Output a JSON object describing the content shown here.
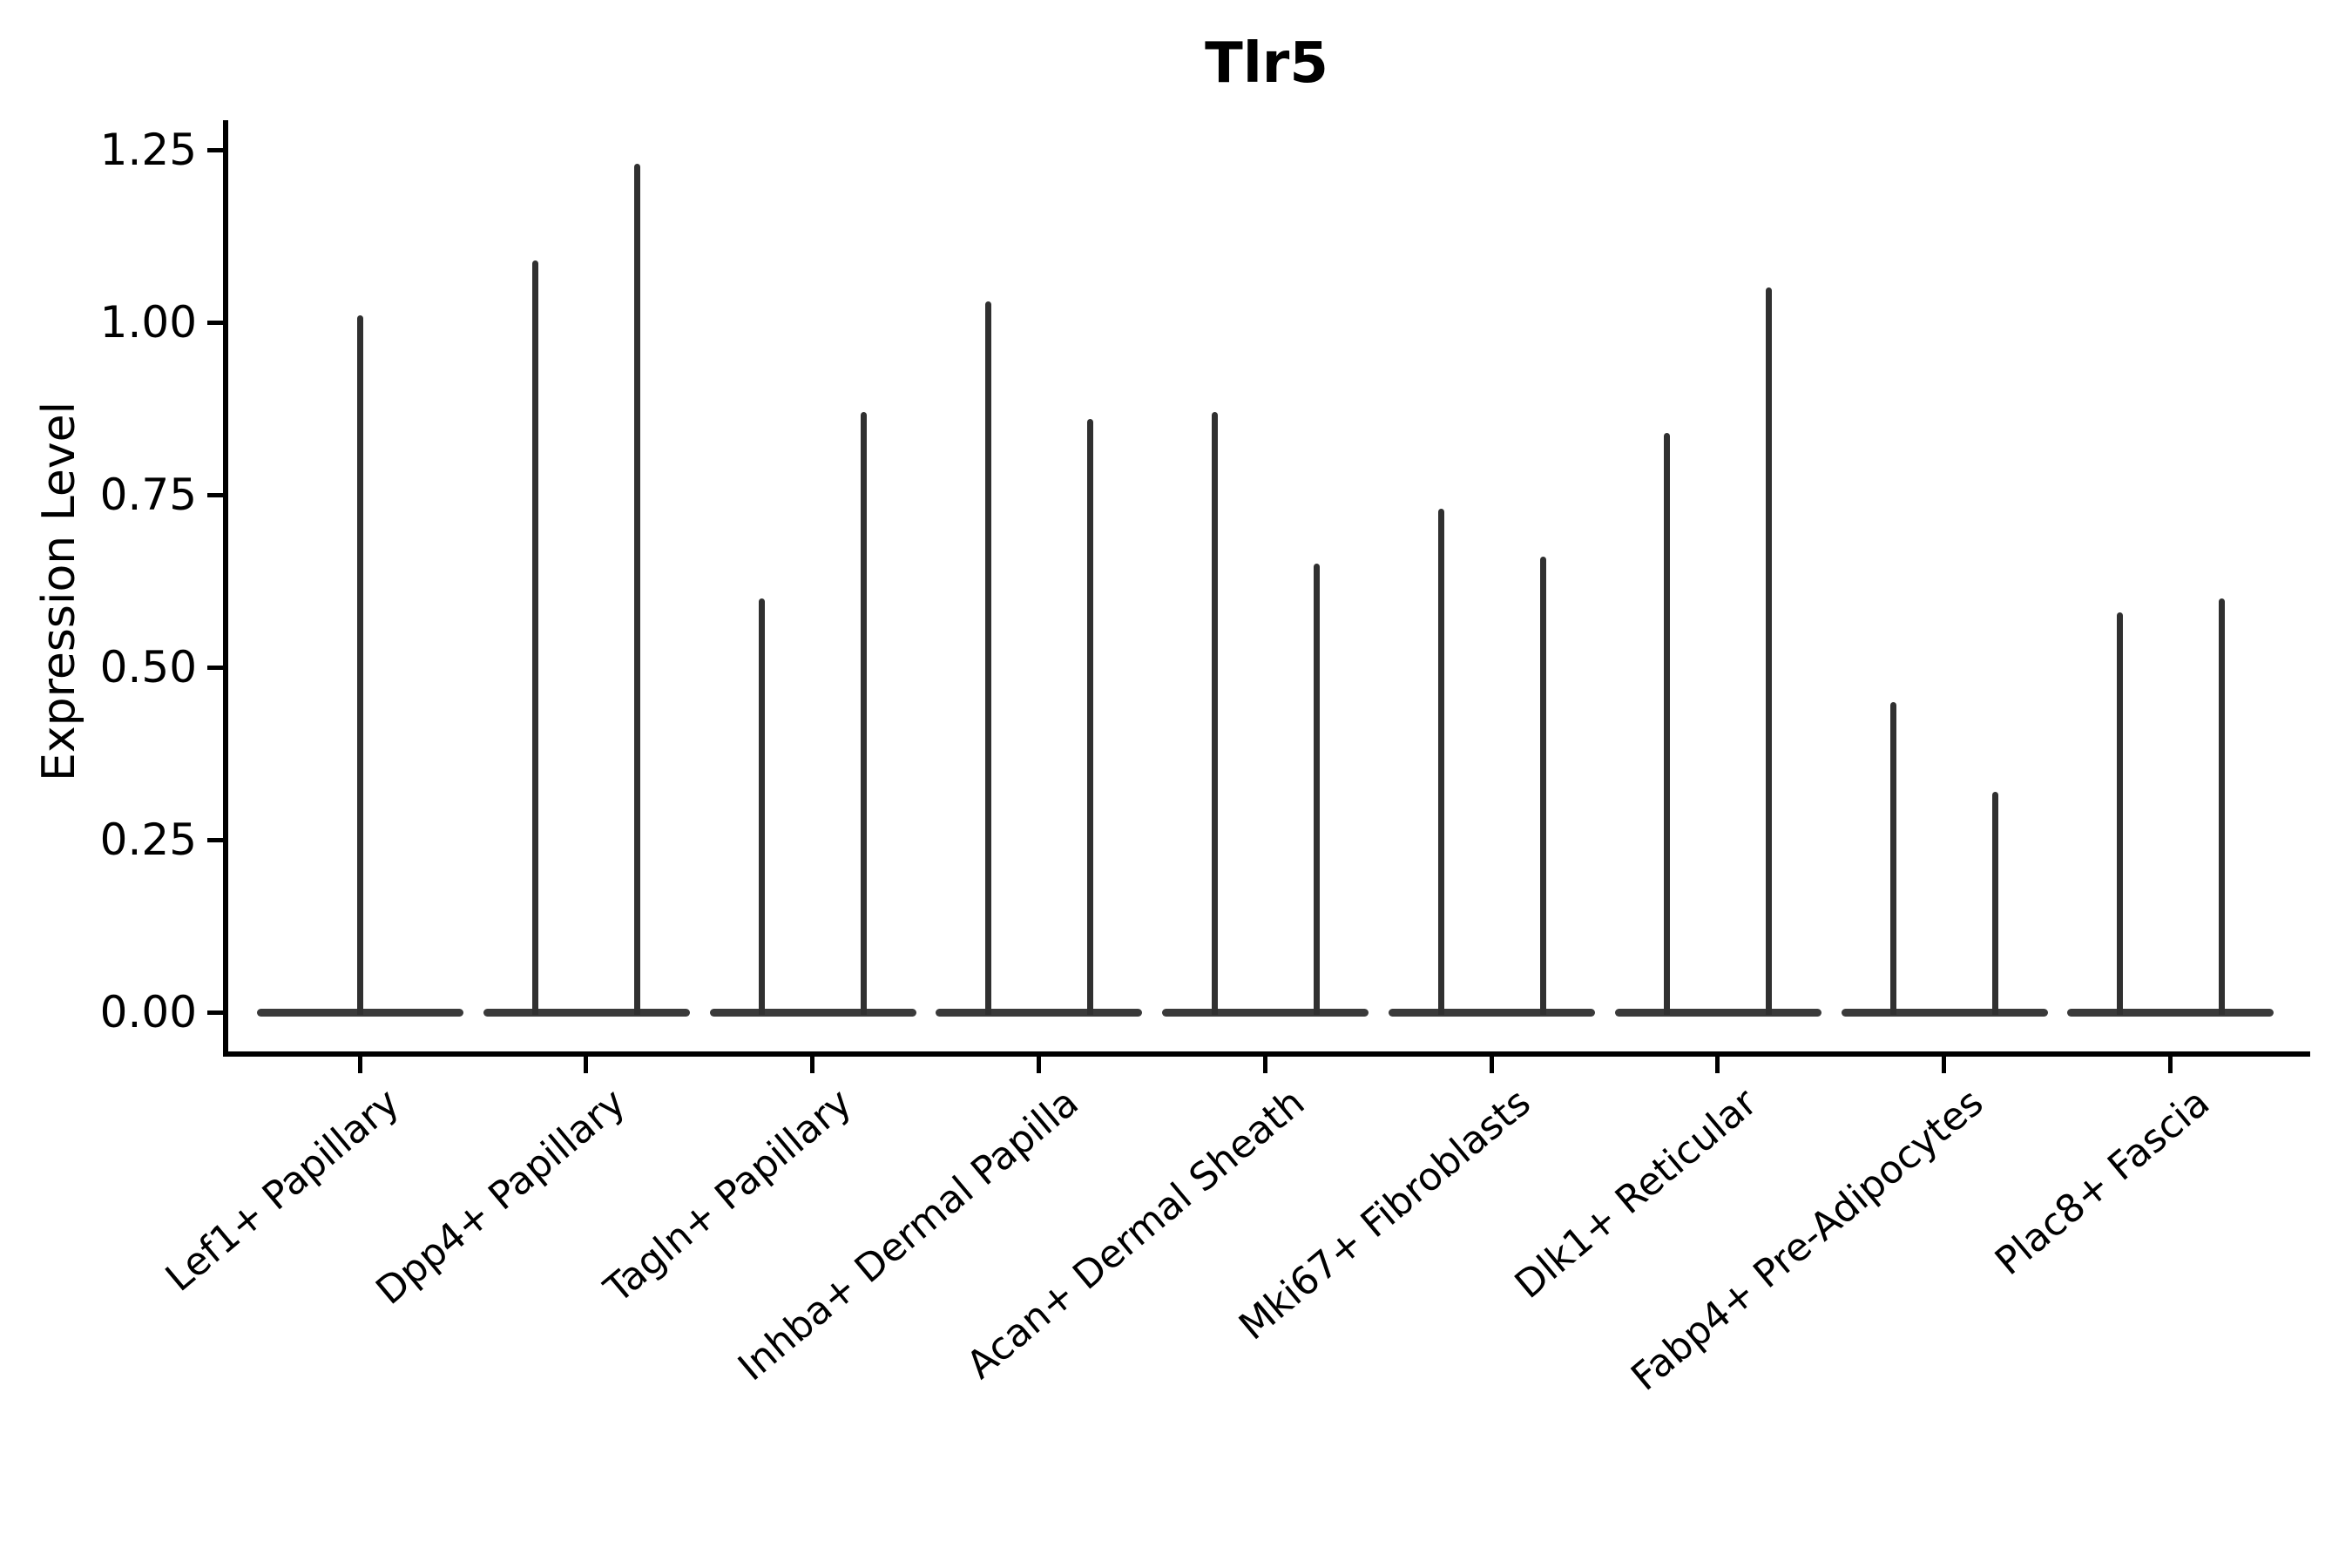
{
  "title": "Tlr5",
  "y_axis": {
    "label": "Expression Level",
    "tick_labels": [
      "0.00",
      "0.25",
      "0.50",
      "0.75",
      "1.00",
      "1.25"
    ]
  },
  "x_axis": {
    "tick_label_rotation_deg": 40
  },
  "colors": {
    "background": "#ffffff",
    "axis": "#000000",
    "violin_spike": "#303030",
    "violin_body": "#3a3a3a",
    "text": "#000000"
  },
  "chart_data": {
    "type": "violin",
    "title": "Tlr5",
    "xlabel": "",
    "ylabel": "Expression Level",
    "ylim": [
      -0.06,
      1.3
    ],
    "yticks": [
      0.0,
      0.25,
      0.5,
      0.75,
      1.0,
      1.25
    ],
    "grid": false,
    "legend": "none",
    "description": "Single-gene expression violin plot. Each category shows violin(s) whose density mass is concentrated at 0 (flat wide body at y=0) with a thin vertical extrema line rising to the maximum expression value. Category 1 has one centered violin; categories 2-9 each contain two side-by-side violins.",
    "categories": [
      "Lef1+ Papillary",
      "Dpp4+ Papillary",
      "Tagln+ Papillary",
      "Inhba+ Dermal Papilla",
      "Acan+ Dermal Sheath",
      "Mki67+ Fibroblasts",
      "Dlk1+ Reticular",
      "Fabp4+ Pre-Adipocytes",
      "Plac8+ Fascia"
    ],
    "groups": [
      {
        "label": "Lef1+ Papillary",
        "violins": [
          {
            "min": 0,
            "max": 1.01
          }
        ]
      },
      {
        "label": "Dpp4+ Papillary",
        "violins": [
          {
            "min": 0,
            "max": 1.09
          },
          {
            "min": 0,
            "max": 1.23
          }
        ]
      },
      {
        "label": "Tagln+ Papillary",
        "violins": [
          {
            "min": 0,
            "max": 0.6
          },
          {
            "min": 0,
            "max": 0.87
          }
        ]
      },
      {
        "label": "Inhba+ Dermal Papilla",
        "violins": [
          {
            "min": 0,
            "max": 1.03
          },
          {
            "min": 0,
            "max": 0.86
          }
        ]
      },
      {
        "label": "Acan+ Dermal Sheath",
        "violins": [
          {
            "min": 0,
            "max": 0.87
          },
          {
            "min": 0,
            "max": 0.65
          }
        ]
      },
      {
        "label": "Mki67+ Fibroblasts",
        "violins": [
          {
            "min": 0,
            "max": 0.73
          },
          {
            "min": 0,
            "max": 0.66
          }
        ]
      },
      {
        "label": "Dlk1+ Reticular",
        "violins": [
          {
            "min": 0,
            "max": 0.84
          },
          {
            "min": 0,
            "max": 1.05
          }
        ]
      },
      {
        "label": "Fabp4+ Pre-Adipocytes",
        "violins": [
          {
            "min": 0,
            "max": 0.45
          },
          {
            "min": 0,
            "max": 0.32
          }
        ]
      },
      {
        "label": "Plac8+ Fascia",
        "violins": [
          {
            "min": 0,
            "max": 0.58
          },
          {
            "min": 0,
            "max": 0.6
          }
        ]
      }
    ]
  }
}
